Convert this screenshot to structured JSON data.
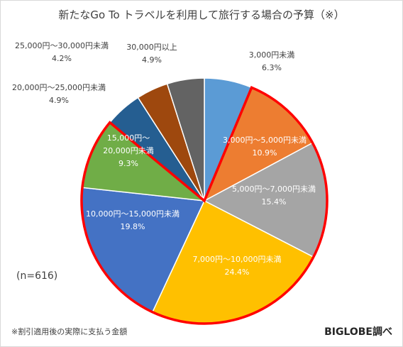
{
  "chart_data": {
    "type": "pie",
    "title": "新たなGo To トラベルを利用して旅行する場合の予算（※）",
    "sample_label": "(n=616)",
    "footnote": "※割引適用後の実際に支払う金額",
    "source": "BIGLOBE調べ",
    "slices": [
      {
        "label": "3,000円未満",
        "value": 6.3,
        "display": "6.3%",
        "color": "#5b9bd5"
      },
      {
        "label": "3,000円～5,000円未満",
        "value": 10.9,
        "display": "10.9%",
        "color": "#ed7d31"
      },
      {
        "label": "5,000円～7,000円未満",
        "value": 15.4,
        "display": "15.4%",
        "color": "#a5a5a5"
      },
      {
        "label": "7,000円～10,000円未満",
        "value": 24.4,
        "display": "24.4%",
        "color": "#ffc000"
      },
      {
        "label": "10,000円～15,000円未満",
        "value": 19.8,
        "display": "19.8%",
        "color": "#4472c4"
      },
      {
        "label": "15,000円～20,000円未満",
        "label_lines": [
          "15,000円～",
          "20,000円未満"
        ],
        "value": 9.3,
        "display": "9.3%",
        "color": "#70ad47"
      },
      {
        "label": "20,000円～25,000円未満",
        "value": 4.9,
        "display": "4.9%",
        "color": "#255e91"
      },
      {
        "label": "25,000円～30,000円未満",
        "value": 4.2,
        "display": "4.2%",
        "color": "#9e480e"
      },
      {
        "label": "30,000円以上",
        "value": 4.9,
        "display": "4.9%",
        "color": "#636363"
      }
    ],
    "highlight": {
      "from_index": 1,
      "to_index": 5,
      "color": "#ff0000"
    },
    "legend": "none",
    "labels": "data labels on and beside slices"
  }
}
